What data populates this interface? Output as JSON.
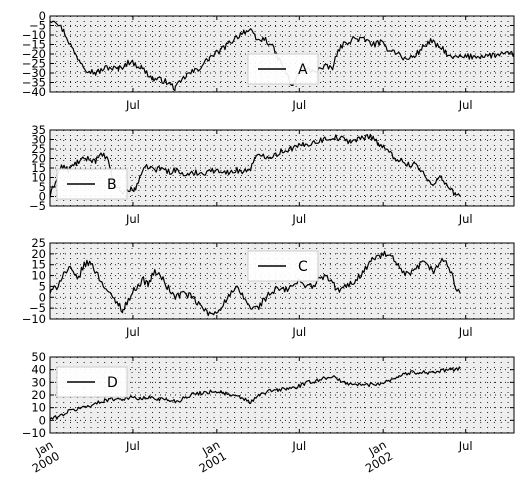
{
  "chart_data": [
    {
      "type": "line",
      "series": [
        {
          "name": "A",
          "color": "#000000"
        }
      ],
      "x_range": [
        "2000-01-01",
        "2002-10-15"
      ],
      "ylim": [
        -40,
        0
      ],
      "yticks": [
        "0",
        "−5",
        "−10",
        "−15",
        "−20",
        "−25",
        "−30",
        "−35",
        "−40"
      ],
      "xtick_labels": [
        "Jul",
        "Jul",
        "Jul"
      ],
      "legend_position": "center-right",
      "grid": true,
      "anchors": [
        [
          0,
          -2
        ],
        [
          12,
          -2
        ],
        [
          30,
          -8
        ],
        [
          55,
          -20
        ],
        [
          80,
          -28
        ],
        [
          100,
          -30
        ],
        [
          125,
          -27
        ],
        [
          150,
          -28
        ],
        [
          175,
          -24
        ],
        [
          200,
          -27
        ],
        [
          225,
          -33
        ],
        [
          250,
          -34
        ],
        [
          275,
          -38
        ],
        [
          300,
          -31
        ],
        [
          325,
          -28
        ],
        [
          350,
          -22
        ],
        [
          375,
          -18
        ],
        [
          400,
          -13
        ],
        [
          425,
          -8
        ],
        [
          440,
          -8
        ],
        [
          455,
          -13
        ],
        [
          470,
          -12
        ],
        [
          485,
          -15
        ],
        [
          500,
          -22
        ],
        [
          515,
          -28
        ],
        [
          530,
          -37
        ],
        [
          545,
          -31
        ],
        [
          560,
          -28
        ],
        [
          575,
          -29
        ],
        [
          590,
          -28
        ],
        [
          605,
          -27
        ],
        [
          620,
          -27
        ],
        [
          635,
          -17
        ],
        [
          650,
          -14
        ],
        [
          665,
          -12
        ],
        [
          680,
          -12
        ],
        [
          695,
          -13
        ],
        [
          710,
          -15
        ],
        [
          725,
          -14
        ],
        [
          740,
          -17
        ],
        [
          760,
          -19
        ],
        [
          780,
          -23
        ],
        [
          800,
          -21
        ],
        [
          820,
          -16
        ],
        [
          835,
          -13
        ],
        [
          850,
          -16
        ],
        [
          865,
          -18
        ],
        [
          878,
          -22
        ],
        [
          1018,
          -20
        ]
      ]
    },
    {
      "type": "line",
      "series": [
        {
          "name": "B",
          "color": "#000000"
        }
      ],
      "x_range": [
        "2000-01-01",
        "2002-10-15"
      ],
      "ylim": [
        -5,
        35
      ],
      "yticks": [
        "35",
        "30",
        "25",
        "20",
        "15",
        "10",
        "5",
        "0",
        "−5"
      ],
      "xtick_labels": [
        "Jul",
        "Jul",
        "Jul"
      ],
      "legend_position": "center-left",
      "grid": true,
      "anchors": [
        [
          0,
          0
        ],
        [
          15,
          10
        ],
        [
          25,
          16
        ],
        [
          40,
          14
        ],
        [
          60,
          18
        ],
        [
          80,
          20
        ],
        [
          100,
          19
        ],
        [
          115,
          22
        ],
        [
          125,
          20
        ],
        [
          135,
          12
        ],
        [
          145,
          5
        ],
        [
          160,
          2
        ],
        [
          175,
          4
        ],
        [
          185,
          3
        ],
        [
          200,
          12
        ],
        [
          215,
          16
        ],
        [
          230,
          14
        ],
        [
          245,
          15
        ],
        [
          260,
          13
        ],
        [
          275,
          14
        ],
        [
          290,
          12
        ],
        [
          305,
          11
        ],
        [
          320,
          13
        ],
        [
          335,
          12
        ],
        [
          350,
          14
        ],
        [
          365,
          13
        ],
        [
          380,
          14
        ],
        [
          395,
          12
        ],
        [
          410,
          14
        ],
        [
          425,
          13
        ],
        [
          440,
          15
        ],
        [
          450,
          20
        ],
        [
          465,
          22
        ],
        [
          480,
          21
        ],
        [
          495,
          22
        ],
        [
          510,
          24
        ],
        [
          525,
          25
        ],
        [
          540,
          26
        ],
        [
          555,
          27
        ],
        [
          570,
          28
        ],
        [
          585,
          29
        ],
        [
          600,
          30
        ],
        [
          615,
          31
        ],
        [
          630,
          31
        ],
        [
          645,
          30
        ],
        [
          660,
          29
        ],
        [
          675,
          30
        ],
        [
          690,
          31
        ],
        [
          700,
          32
        ],
        [
          710,
          31
        ],
        [
          720,
          28
        ],
        [
          735,
          25
        ],
        [
          750,
          22
        ],
        [
          765,
          19
        ],
        [
          780,
          18
        ],
        [
          790,
          16
        ],
        [
          800,
          18
        ],
        [
          810,
          14
        ],
        [
          820,
          12
        ],
        [
          830,
          8
        ],
        [
          840,
          7
        ],
        [
          850,
          9
        ],
        [
          860,
          10
        ],
        [
          870,
          6
        ],
        [
          880,
          3
        ],
        [
          890,
          1
        ],
        [
          900,
          0
        ]
      ]
    },
    {
      "type": "line",
      "series": [
        {
          "name": "C",
          "color": "#000000"
        }
      ],
      "x_range": [
        "2000-01-01",
        "2002-10-15"
      ],
      "ylim": [
        -10,
        25
      ],
      "yticks": [
        "25",
        "20",
        "15",
        "10",
        "5",
        "0",
        "−5",
        "−10"
      ],
      "xtick_labels": [
        "Jul",
        "Jul",
        "Jul"
      ],
      "legend_position": "top-right",
      "grid": true,
      "anchors": [
        [
          0,
          2
        ],
        [
          15,
          5
        ],
        [
          30,
          11
        ],
        [
          45,
          13
        ],
        [
          60,
          8
        ],
        [
          75,
          15
        ],
        [
          90,
          16
        ],
        [
          105,
          10
        ],
        [
          120,
          5
        ],
        [
          135,
          0
        ],
        [
          150,
          -3
        ],
        [
          160,
          -6
        ],
        [
          175,
          0
        ],
        [
          190,
          5
        ],
        [
          205,
          8
        ],
        [
          215,
          6
        ],
        [
          230,
          12
        ],
        [
          245,
          9
        ],
        [
          260,
          4
        ],
        [
          275,
          0
        ],
        [
          290,
          2
        ],
        [
          305,
          1
        ],
        [
          320,
          -2
        ],
        [
          335,
          -5
        ],
        [
          350,
          -8
        ],
        [
          365,
          -7
        ],
        [
          380,
          -3
        ],
        [
          395,
          1
        ],
        [
          410,
          4
        ],
        [
          425,
          0
        ],
        [
          440,
          -5
        ],
        [
          455,
          -5
        ],
        [
          470,
          -1
        ],
        [
          485,
          2
        ],
        [
          500,
          4
        ],
        [
          515,
          3
        ],
        [
          530,
          5
        ],
        [
          545,
          7
        ],
        [
          560,
          6
        ],
        [
          575,
          5
        ],
        [
          590,
          8
        ],
        [
          605,
          10
        ],
        [
          620,
          6
        ],
        [
          635,
          3
        ],
        [
          650,
          5
        ],
        [
          665,
          7
        ],
        [
          680,
          10
        ],
        [
          695,
          14
        ],
        [
          710,
          18
        ],
        [
          725,
          19
        ],
        [
          740,
          20
        ],
        [
          755,
          17
        ],
        [
          770,
          12
        ],
        [
          785,
          10
        ],
        [
          800,
          12
        ],
        [
          815,
          16
        ],
        [
          830,
          14
        ],
        [
          845,
          12
        ],
        [
          860,
          18
        ],
        [
          875,
          14
        ],
        [
          890,
          5
        ],
        [
          900,
          2
        ]
      ]
    },
    {
      "type": "line",
      "series": [
        {
          "name": "D",
          "color": "#000000"
        }
      ],
      "x_range": [
        "2000-01-01",
        "2002-10-15"
      ],
      "ylim": [
        -10,
        50
      ],
      "yticks": [
        "50",
        "40",
        "30",
        "20",
        "10",
        "0",
        "−10"
      ],
      "xtick_labels": [
        "Jan\n2000",
        "Jul",
        "Jan\n2001",
        "Jul",
        "Jan\n2002",
        "Jul"
      ],
      "legend_position": "top-left",
      "grid": true,
      "anchors": [
        [
          0,
          1
        ],
        [
          20,
          3
        ],
        [
          40,
          7
        ],
        [
          60,
          9
        ],
        [
          80,
          11
        ],
        [
          100,
          13
        ],
        [
          120,
          16
        ],
        [
          140,
          17
        ],
        [
          160,
          17
        ],
        [
          180,
          18
        ],
        [
          200,
          17
        ],
        [
          220,
          18
        ],
        [
          240,
          17
        ],
        [
          260,
          16
        ],
        [
          280,
          15
        ],
        [
          300,
          19
        ],
        [
          320,
          21
        ],
        [
          340,
          22
        ],
        [
          360,
          23
        ],
        [
          380,
          22
        ],
        [
          400,
          19
        ],
        [
          420,
          18
        ],
        [
          440,
          14
        ],
        [
          460,
          20
        ],
        [
          480,
          23
        ],
        [
          500,
          24
        ],
        [
          520,
          25
        ],
        [
          540,
          26
        ],
        [
          560,
          29
        ],
        [
          580,
          31
        ],
        [
          600,
          33
        ],
        [
          620,
          35
        ],
        [
          640,
          30
        ],
        [
          660,
          29
        ],
        [
          680,
          28
        ],
        [
          700,
          28
        ],
        [
          720,
          29
        ],
        [
          740,
          31
        ],
        [
          760,
          34
        ],
        [
          780,
          37
        ],
        [
          800,
          38
        ],
        [
          820,
          38
        ],
        [
          840,
          38
        ],
        [
          860,
          39
        ],
        [
          880,
          40
        ],
        [
          900,
          41
        ]
      ]
    }
  ]
}
